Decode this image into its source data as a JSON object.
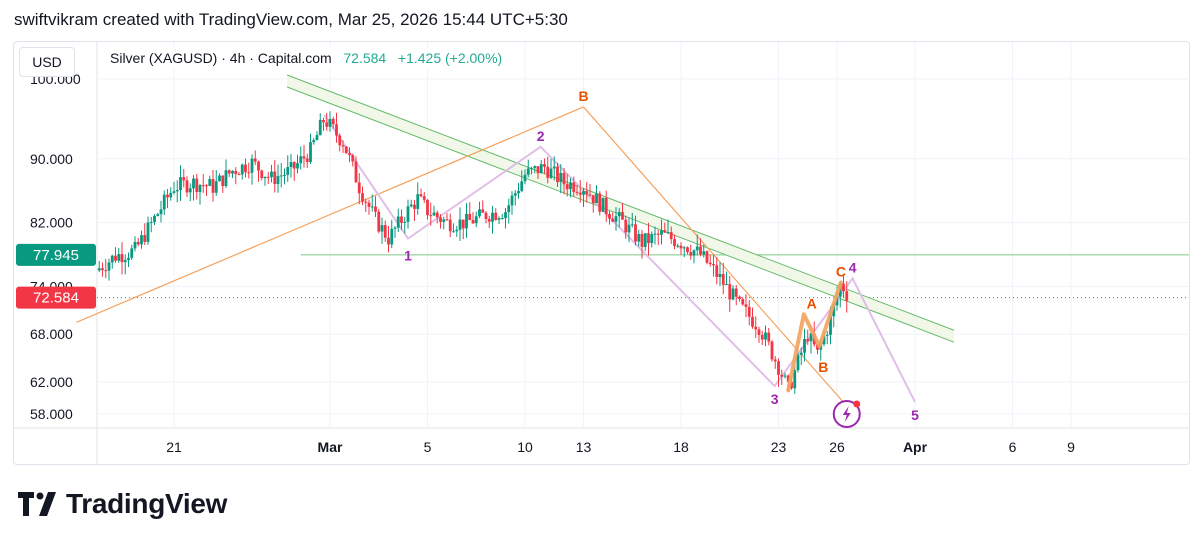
{
  "header": {
    "attribution": "swiftvikram created with TradingView.com, Mar 25, 2026 15:44 UTC+5:30"
  },
  "toolbar": {
    "currency": "USD"
  },
  "legend": {
    "symbol": "Silver (XAGUSD) · 4h · Capital.com",
    "price": "72.584",
    "change": "+1.425 (+2.00%)"
  },
  "brand": {
    "name": "TradingView"
  },
  "colors": {
    "up": "#089981",
    "down": "#f23645",
    "fib": "#f5a25d",
    "channel": "#e6d0e6",
    "projection": "#e1bee7",
    "purple_label": "#9c27b0",
    "orange_label": "#e65100",
    "trend_line": "#66bb6a",
    "band_fill": "#f1f8e9",
    "level": "#81c784"
  },
  "chart_data": {
    "type": "candlestick",
    "interval": "4h",
    "y_ticks": [
      100,
      90,
      82,
      74,
      68,
      62,
      58
    ],
    "y_tick_labels": [
      "100.000",
      "90.000",
      "82.000",
      "74.000",
      "68.000",
      "62.000",
      "58.000"
    ],
    "x_ticks": [
      {
        "label": "21",
        "day": 21
      },
      {
        "label": "Mar",
        "day": 29
      },
      {
        "label": "5",
        "day": 34
      },
      {
        "label": "10",
        "day": 39
      },
      {
        "label": "13",
        "day": 42
      },
      {
        "label": "18",
        "day": 47
      },
      {
        "label": "23",
        "day": 52
      },
      {
        "label": "26",
        "day": 55
      },
      {
        "label": "Apr",
        "day": 59
      },
      {
        "label": "6",
        "day": 64
      },
      {
        "label": "9",
        "day": 67
      }
    ],
    "price_badges": [
      {
        "label": "77.945",
        "value": 77.945,
        "color": "#089981"
      },
      {
        "label": "72.584",
        "value": 72.584,
        "color": "#f23645"
      }
    ],
    "horizontal_level": 77.945,
    "last_price": 72.584,
    "path": [
      [
        17.0,
        76.0
      ],
      [
        18.0,
        77.8
      ],
      [
        19.0,
        78.5
      ],
      [
        20.0,
        82.5
      ],
      [
        21.0,
        86.5
      ],
      [
        22.0,
        87.0
      ],
      [
        23.0,
        86.5
      ],
      [
        24.0,
        88.5
      ],
      [
        25.0,
        89.5
      ],
      [
        26.0,
        87.5
      ],
      [
        27.0,
        88.5
      ],
      [
        28.0,
        91.0
      ],
      [
        28.7,
        95.0
      ],
      [
        29.7,
        92.0
      ],
      [
        30.5,
        86.5
      ],
      [
        31.3,
        82.5
      ],
      [
        32.0,
        80.0
      ],
      [
        33.0,
        83.5
      ],
      [
        33.5,
        85.0
      ],
      [
        34.0,
        83.5
      ],
      [
        35.0,
        82.0
      ],
      [
        36.0,
        82.0
      ],
      [
        37.0,
        83.0
      ],
      [
        38.0,
        83.5
      ],
      [
        39.0,
        88.0
      ],
      [
        40.0,
        89.0
      ],
      [
        41.0,
        87.0
      ],
      [
        42.0,
        86.5
      ],
      [
        43.0,
        84.0
      ],
      [
        44.0,
        82.0
      ],
      [
        45.0,
        79.5
      ],
      [
        46.0,
        80.5
      ],
      [
        47.0,
        79.5
      ],
      [
        48.0,
        78.0
      ],
      [
        49.0,
        75.0
      ],
      [
        50.0,
        71.5
      ],
      [
        51.0,
        69.0
      ],
      [
        52.0,
        64.0
      ],
      [
        52.5,
        61.0
      ],
      [
        53.5,
        68.0
      ],
      [
        54.0,
        65.5
      ],
      [
        54.7,
        70.0
      ],
      [
        55.2,
        74.5
      ],
      [
        55.6,
        72.6
      ]
    ],
    "waves_purple": [
      {
        "label": "1",
        "day": 33.0,
        "price": 79.5
      },
      {
        "label": "2",
        "day": 39.8,
        "price": 91.5
      },
      {
        "label": "3",
        "day": 51.8,
        "price": 61.5
      },
      {
        "label": "4",
        "day": 55.8,
        "price": 75.0
      },
      {
        "label": "5",
        "day": 59.0,
        "price": 59.5
      }
    ],
    "waves_orange": [
      {
        "label": "B",
        "day": 42.0,
        "price": 96.5
      },
      {
        "label": "A",
        "day": 53.7,
        "price": 70.5
      },
      {
        "label": "B",
        "day": 54.3,
        "price": 65.5
      },
      {
        "label": "C",
        "day": 55.2,
        "price": 74.5
      }
    ],
    "fib_lines": [
      {
        "from": [
          16.0,
          69.5
        ],
        "to": [
          42.0,
          96.5
        ]
      },
      {
        "from": [
          42.0,
          96.5
        ],
        "to": [
          55.5,
          59.0
        ]
      }
    ],
    "channel_band": {
      "upper": {
        "from": [
          26.8,
          100.5
        ],
        "to": [
          61.0,
          68.5
        ]
      },
      "lower": {
        "from": [
          26.8,
          99.0
        ],
        "to": [
          61.0,
          67.0
        ]
      }
    },
    "bold_wave": [
      [
        52.5,
        61.0
      ],
      [
        53.3,
        70.5
      ],
      [
        54.1,
        66.5
      ],
      [
        55.2,
        74.5
      ]
    ]
  }
}
